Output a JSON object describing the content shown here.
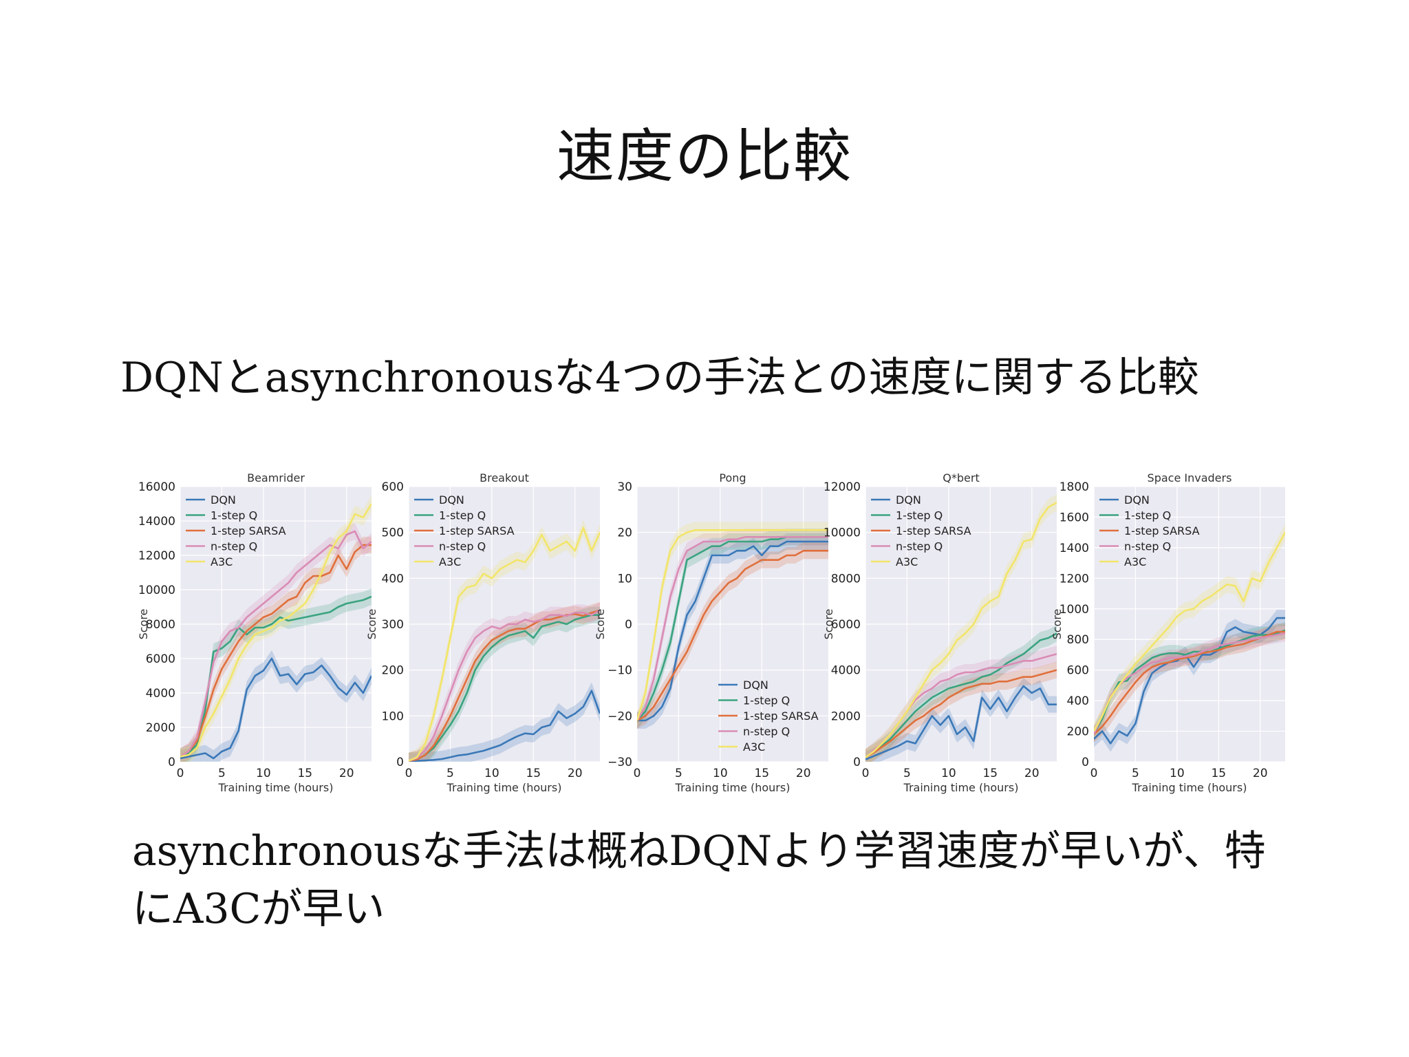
{
  "slide": {
    "title": "速度の比較",
    "subtitle": "DQNとasynchronousな4つの手法との速度に関する比較",
    "conclusion_line1": "asynchronousな手法は概ねDQNより学習速度が早いが、特",
    "conclusion_line2": "にA3Cが早い"
  },
  "colors": {
    "DQN": "#3a78b8",
    "1-step Q": "#3aa37f",
    "1-step SARSA": "#e06f3c",
    "n-step Q": "#d98cb5",
    "A3C": "#f2e56a"
  },
  "chart_data": [
    {
      "type": "line",
      "title": "Beamrider",
      "xlabel": "Training time (hours)",
      "ylabel": "Score",
      "xlim": [
        0,
        23
      ],
      "ylim": [
        0,
        16000
      ],
      "xticks": [
        0,
        5,
        10,
        15,
        20
      ],
      "yticks": [
        0,
        2000,
        4000,
        6000,
        8000,
        10000,
        12000,
        14000,
        16000
      ],
      "legend": "top-left",
      "x": [
        0,
        1,
        2,
        3,
        4,
        5,
        6,
        7,
        8,
        9,
        10,
        11,
        12,
        13,
        14,
        15,
        16,
        17,
        18,
        19,
        20,
        21,
        22,
        23
      ],
      "series": [
        {
          "name": "DQN",
          "values": [
            200,
            300,
            400,
            500,
            200,
            600,
            800,
            1800,
            4200,
            5000,
            5300,
            6000,
            5000,
            5100,
            4500,
            5100,
            5200,
            5600,
            5000,
            4300,
            3900,
            4600,
            4000,
            5000
          ]
        },
        {
          "name": "1-step Q",
          "values": [
            300,
            500,
            1000,
            3000,
            6400,
            6600,
            7000,
            7800,
            7400,
            7800,
            7800,
            8000,
            8400,
            8200,
            8300,
            8400,
            8500,
            8600,
            8700,
            9000,
            9200,
            9300,
            9400,
            9600
          ]
        },
        {
          "name": "1-step SARSA",
          "values": [
            300,
            600,
            1200,
            2600,
            4200,
            5400,
            6200,
            7000,
            7600,
            8000,
            8400,
            8600,
            9000,
            9400,
            9600,
            10400,
            10800,
            10800,
            11000,
            12000,
            11200,
            12200,
            12600,
            12600
          ]
        },
        {
          "name": "n-step Q",
          "values": [
            300,
            600,
            1400,
            3500,
            5800,
            7000,
            7600,
            7800,
            8400,
            8800,
            9200,
            9600,
            10000,
            10400,
            11000,
            11400,
            11800,
            12200,
            12600,
            12400,
            13200,
            13400,
            12400,
            12800
          ]
        },
        {
          "name": "A3C",
          "values": [
            300,
            400,
            800,
            2000,
            2800,
            3800,
            4800,
            6000,
            6800,
            7400,
            7600,
            7800,
            8200,
            8400,
            8800,
            9200,
            10000,
            11000,
            12200,
            13000,
            13400,
            14400,
            14200,
            15000
          ]
        }
      ]
    },
    {
      "type": "line",
      "title": "Breakout",
      "xlabel": "Training time (hours)",
      "ylabel": "Score",
      "xlim": [
        0,
        23
      ],
      "ylim": [
        0,
        600
      ],
      "xticks": [
        0,
        5,
        10,
        15,
        20
      ],
      "yticks": [
        0,
        100,
        200,
        300,
        400,
        500,
        600
      ],
      "legend": "top-left",
      "x": [
        0,
        1,
        2,
        3,
        4,
        5,
        6,
        7,
        8,
        9,
        10,
        11,
        12,
        13,
        14,
        15,
        16,
        17,
        18,
        19,
        20,
        21,
        22,
        23
      ],
      "series": [
        {
          "name": "DQN",
          "values": [
            2,
            2,
            3,
            4,
            6,
            10,
            14,
            16,
            20,
            24,
            30,
            36,
            46,
            55,
            62,
            60,
            75,
            80,
            110,
            95,
            105,
            120,
            155,
            105
          ]
        },
        {
          "name": "1-step Q",
          "values": [
            2,
            5,
            15,
            30,
            55,
            80,
            110,
            150,
            200,
            230,
            250,
            265,
            275,
            280,
            285,
            270,
            295,
            300,
            305,
            300,
            310,
            315,
            320,
            320
          ]
        },
        {
          "name": "1-step SARSA",
          "values": [
            2,
            5,
            15,
            35,
            65,
            100,
            140,
            180,
            220,
            245,
            265,
            275,
            285,
            290,
            290,
            300,
            310,
            310,
            315,
            320,
            322,
            318,
            325,
            330
          ]
        },
        {
          "name": "n-step Q",
          "values": [
            2,
            8,
            25,
            55,
            100,
            150,
            200,
            240,
            270,
            285,
            295,
            290,
            300,
            300,
            310,
            305,
            310,
            320,
            320,
            318,
            325,
            325,
            320,
            330
          ]
        },
        {
          "name": "A3C",
          "values": [
            2,
            10,
            40,
            100,
            180,
            270,
            360,
            380,
            385,
            410,
            400,
            420,
            430,
            440,
            435,
            460,
            495,
            460,
            470,
            480,
            460,
            510,
            460,
            500
          ]
        }
      ]
    },
    {
      "type": "line",
      "title": "Pong",
      "xlabel": "Training time (hours)",
      "ylabel": "Score",
      "xlim": [
        0,
        23
      ],
      "ylim": [
        -30,
        30
      ],
      "xticks": [
        0,
        5,
        10,
        15,
        20
      ],
      "yticks": [
        -30,
        -20,
        -10,
        0,
        10,
        20,
        30
      ],
      "legend": "bottom-right",
      "x": [
        0,
        1,
        2,
        3,
        4,
        5,
        6,
        7,
        8,
        9,
        10,
        11,
        12,
        13,
        14,
        15,
        16,
        17,
        18,
        19,
        20,
        21,
        22,
        23
      ],
      "series": [
        {
          "name": "DQN",
          "values": [
            -21,
            -21,
            -20,
            -18,
            -14,
            -5,
            2,
            5,
            10,
            15,
            15,
            15,
            16,
            16,
            17,
            15,
            17,
            17,
            18,
            18,
            18,
            18,
            18,
            18
          ]
        },
        {
          "name": "1-step Q",
          "values": [
            -21,
            -19,
            -15,
            -10,
            -4,
            5,
            14,
            15,
            16,
            17,
            17,
            18,
            18,
            18,
            18,
            18,
            18.5,
            18.5,
            19,
            19,
            19,
            19,
            19,
            19
          ]
        },
        {
          "name": "1-step SARSA",
          "values": [
            -21,
            -20,
            -18,
            -15,
            -12,
            -9,
            -6,
            -2,
            2,
            5,
            7,
            9,
            10,
            12,
            13,
            14,
            14,
            14,
            15,
            15,
            16,
            16,
            16,
            16
          ]
        },
        {
          "name": "n-step Q",
          "values": [
            -21,
            -18,
            -12,
            -3,
            6,
            12,
            16,
            17,
            18,
            18,
            18,
            18.5,
            18.5,
            19,
            19,
            19,
            19,
            19,
            19,
            19,
            19,
            19,
            19,
            19
          ]
        },
        {
          "name": "A3C",
          "values": [
            -21,
            -15,
            -4,
            8,
            16,
            19,
            20,
            20.5,
            20.5,
            20.5,
            20.5,
            20.5,
            20.5,
            20.5,
            20.5,
            20.5,
            20.5,
            20.5,
            20.5,
            20.5,
            20.5,
            20.5,
            20.5,
            20.5
          ]
        }
      ]
    },
    {
      "type": "line",
      "title": "Q*bert",
      "xlabel": "Training time (hours)",
      "ylabel": "Score",
      "xlim": [
        0,
        23
      ],
      "ylim": [
        0,
        12000
      ],
      "xticks": [
        0,
        5,
        10,
        15,
        20
      ],
      "yticks": [
        0,
        2000,
        4000,
        6000,
        8000,
        10000,
        12000
      ],
      "legend": "top-left",
      "x": [
        0,
        1,
        2,
        3,
        4,
        5,
        6,
        7,
        8,
        9,
        10,
        11,
        12,
        13,
        14,
        15,
        16,
        17,
        18,
        19,
        20,
        21,
        22,
        23
      ],
      "series": [
        {
          "name": "DQN",
          "values": [
            100,
            250,
            400,
            550,
            700,
            900,
            800,
            1400,
            2000,
            1600,
            2000,
            1200,
            1500,
            900,
            2800,
            2300,
            2800,
            2200,
            2800,
            3300,
            3000,
            3200,
            2500,
            2500
          ]
        },
        {
          "name": "1-step Q",
          "values": [
            200,
            450,
            700,
            1000,
            1400,
            1800,
            2200,
            2500,
            2800,
            3000,
            3200,
            3300,
            3400,
            3500,
            3700,
            3800,
            4000,
            4300,
            4500,
            4700,
            5000,
            5300,
            5400,
            5600
          ]
        },
        {
          "name": "1-step SARSA",
          "values": [
            200,
            400,
            650,
            900,
            1200,
            1500,
            1800,
            2000,
            2300,
            2500,
            2800,
            3000,
            3200,
            3300,
            3400,
            3400,
            3500,
            3500,
            3600,
            3700,
            3700,
            3800,
            3900,
            4000
          ]
        },
        {
          "name": "n-step Q",
          "values": [
            200,
            500,
            800,
            1200,
            1700,
            2200,
            2700,
            3000,
            3200,
            3500,
            3600,
            3800,
            3900,
            3900,
            4000,
            4100,
            4100,
            4200,
            4300,
            4400,
            4400,
            4500,
            4600,
            4700
          ]
        },
        {
          "name": "A3C",
          "values": [
            200,
            450,
            800,
            1200,
            1700,
            2200,
            2800,
            3400,
            4000,
            4300,
            4700,
            5300,
            5600,
            6000,
            6700,
            7000,
            7200,
            8200,
            8800,
            9600,
            9700,
            10600,
            11100,
            11300
          ]
        }
      ]
    },
    {
      "type": "line",
      "title": "Space Invaders",
      "xlabel": "Training time (hours)",
      "ylabel": "Score",
      "xlim": [
        0,
        23
      ],
      "ylim": [
        0,
        1800
      ],
      "xticks": [
        0,
        5,
        10,
        15,
        20
      ],
      "yticks": [
        0,
        200,
        400,
        600,
        800,
        1000,
        1200,
        1400,
        1600,
        1800
      ],
      "legend": "top-left",
      "x": [
        0,
        1,
        2,
        3,
        4,
        5,
        6,
        7,
        8,
        9,
        10,
        11,
        12,
        13,
        14,
        15,
        16,
        17,
        18,
        19,
        20,
        21,
        22,
        23
      ],
      "series": [
        {
          "name": "DQN",
          "values": [
            150,
            200,
            120,
            200,
            170,
            250,
            460,
            580,
            620,
            650,
            660,
            700,
            620,
            700,
            700,
            730,
            850,
            880,
            850,
            840,
            830,
            870,
            940,
            940
          ]
        },
        {
          "name": "1-step Q",
          "values": [
            180,
            280,
            420,
            520,
            530,
            600,
            640,
            680,
            700,
            710,
            710,
            700,
            720,
            720,
            720,
            740,
            760,
            780,
            800,
            820,
            830,
            830,
            840,
            860
          ]
        },
        {
          "name": "1-step SARSA",
          "values": [
            180,
            230,
            300,
            380,
            450,
            520,
            580,
            620,
            640,
            650,
            670,
            680,
            690,
            710,
            720,
            730,
            750,
            760,
            770,
            790,
            810,
            830,
            850,
            850
          ]
        },
        {
          "name": "n-step Q",
          "values": [
            180,
            300,
            430,
            500,
            550,
            580,
            620,
            650,
            660,
            680,
            680,
            690,
            700,
            720,
            740,
            760,
            770,
            780,
            790,
            800,
            810,
            820,
            830,
            840
          ]
        },
        {
          "name": "A3C",
          "values": [
            200,
            300,
            420,
            500,
            570,
            640,
            700,
            760,
            820,
            880,
            950,
            990,
            1000,
            1050,
            1080,
            1120,
            1160,
            1150,
            1050,
            1200,
            1180,
            1300,
            1400,
            1500
          ]
        }
      ]
    }
  ]
}
